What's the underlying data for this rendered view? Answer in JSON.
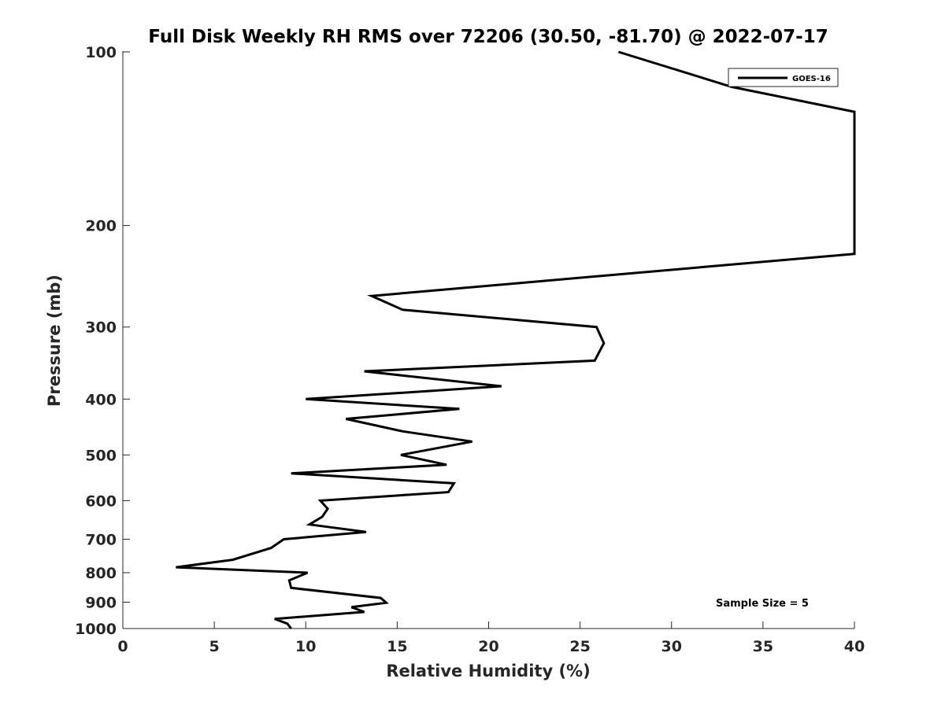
{
  "chart_data": {
    "type": "line",
    "title": "Full Disk Weekly RH RMS over 72206 (30.50, -81.70) @ 2022-07-17",
    "xlabel": "Relative Humidity (%)",
    "ylabel": "Pressure (mb)",
    "xlim": [
      0,
      40
    ],
    "ylim": [
      100,
      1000
    ],
    "y_scale": "log",
    "y_reversed": true,
    "x_ticks": [
      0,
      5,
      10,
      15,
      20,
      25,
      30,
      35,
      40
    ],
    "y_ticks": [
      100,
      200,
      300,
      400,
      500,
      600,
      700,
      800,
      900,
      1000
    ],
    "grid": false,
    "legend_position": "top-right",
    "annotation": "Sample Size = 5",
    "series": [
      {
        "name": "GOES-16",
        "color": "#000000",
        "points": [
          {
            "x": 27.1,
            "y": 100
          },
          {
            "x": 33.3,
            "y": 115
          },
          {
            "x": 40.0,
            "y": 127
          },
          {
            "x": 40.0,
            "y": 224
          },
          {
            "x": 13.6,
            "y": 265
          },
          {
            "x": 15.3,
            "y": 280
          },
          {
            "x": 25.9,
            "y": 300
          },
          {
            "x": 26.3,
            "y": 320
          },
          {
            "x": 25.8,
            "y": 343
          },
          {
            "x": 13.2,
            "y": 358
          },
          {
            "x": 20.7,
            "y": 380
          },
          {
            "x": 10.0,
            "y": 400
          },
          {
            "x": 18.4,
            "y": 416
          },
          {
            "x": 12.2,
            "y": 433
          },
          {
            "x": 15.3,
            "y": 455
          },
          {
            "x": 19.1,
            "y": 474
          },
          {
            "x": 15.2,
            "y": 500
          },
          {
            "x": 17.7,
            "y": 520
          },
          {
            "x": 9.2,
            "y": 538
          },
          {
            "x": 18.1,
            "y": 560
          },
          {
            "x": 17.8,
            "y": 580
          },
          {
            "x": 10.8,
            "y": 600
          },
          {
            "x": 11.2,
            "y": 620
          },
          {
            "x": 10.9,
            "y": 640
          },
          {
            "x": 10.2,
            "y": 660
          },
          {
            "x": 13.3,
            "y": 680
          },
          {
            "x": 8.8,
            "y": 700
          },
          {
            "x": 8.1,
            "y": 725
          },
          {
            "x": 6.0,
            "y": 760
          },
          {
            "x": 2.9,
            "y": 783
          },
          {
            "x": 10.1,
            "y": 800
          },
          {
            "x": 9.1,
            "y": 825
          },
          {
            "x": 9.2,
            "y": 850
          },
          {
            "x": 14.1,
            "y": 885
          },
          {
            "x": 14.4,
            "y": 902
          },
          {
            "x": 12.5,
            "y": 918
          },
          {
            "x": 13.2,
            "y": 936
          },
          {
            "x": 8.3,
            "y": 962
          },
          {
            "x": 9.0,
            "y": 981
          },
          {
            "x": 9.2,
            "y": 1000
          }
        ]
      }
    ]
  }
}
